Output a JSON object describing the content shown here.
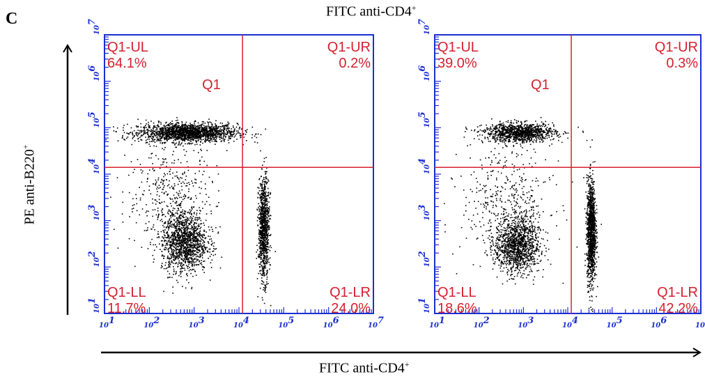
{
  "panel_label": "C",
  "top_label": {
    "text": "FITC anti-CD4",
    "sup": "+"
  },
  "x_axis_label": {
    "text": "FITC anti-CD4",
    "sup": "+"
  },
  "y_axis_label": {
    "text": "PE anti-B220",
    "sup": "+"
  },
  "colors": {
    "axis": "#1a2ed0",
    "gate": "#d4202f",
    "events": "#000000"
  },
  "chart_data": [
    {
      "type": "scatter",
      "scale": "log",
      "xlim": [
        10,
        10000000
      ],
      "ylim": [
        10,
        10000000
      ],
      "x_tick_labels": [
        "10",
        "10",
        "10",
        "10",
        "10",
        "10",
        "10"
      ],
      "x_tick_exponents": [
        "1",
        "2",
        "3",
        "4",
        "5",
        "6",
        "7"
      ],
      "y_tick_labels": [
        "10",
        "10",
        "10",
        "10",
        "10",
        "10",
        "10"
      ],
      "y_tick_exponents": [
        "1",
        "2",
        "3",
        "4",
        "5",
        "6",
        "7"
      ],
      "gate": {
        "name": "Q1",
        "x": 12000,
        "y": 14000
      },
      "quadrants": [
        {
          "name": "Q1-UL",
          "percent": "64.1%"
        },
        {
          "name": "Q1-UR",
          "percent": "0.2%"
        },
        {
          "name": "Q1-LL",
          "percent": "11.7%"
        },
        {
          "name": "Q1-LR",
          "percent": "24.0%"
        }
      ],
      "populations": [
        {
          "cx": 700,
          "cy": 80000,
          "spread_x": 0.55,
          "spread_y": 0.1,
          "n": 1800
        },
        {
          "cx": 600,
          "cy": 350,
          "spread_x": 0.25,
          "spread_y": 0.32,
          "n": 1300
        },
        {
          "cx": 35000,
          "cy": 700,
          "spread_x": 0.06,
          "spread_y": 0.55,
          "n": 1000
        },
        {
          "cx": 300,
          "cy": 3000,
          "spread_x": 0.5,
          "spread_y": 0.6,
          "n": 450
        }
      ]
    },
    {
      "type": "scatter",
      "scale": "log",
      "xlim": [
        10,
        10000000
      ],
      "ylim": [
        10,
        10000000
      ],
      "x_tick_labels": [
        "10",
        "10",
        "10",
        "10",
        "10",
        "10",
        "10"
      ],
      "x_tick_exponents": [
        "1",
        "2",
        "3",
        "4",
        "5",
        "6",
        "7"
      ],
      "y_tick_labels": [
        "10",
        "10",
        "10",
        "10",
        "10",
        "10",
        "10"
      ],
      "y_tick_exponents": [
        "1",
        "2",
        "3",
        "4",
        "5",
        "6",
        "7"
      ],
      "gate": {
        "name": "Q1",
        "x": 12000,
        "y": 14000
      },
      "quadrants": [
        {
          "name": "Q1-UL",
          "percent": "39.0%"
        },
        {
          "name": "Q1-UR",
          "percent": "0.3%"
        },
        {
          "name": "Q1-LL",
          "percent": "18.6%"
        },
        {
          "name": "Q1-LR",
          "percent": "42.2%"
        }
      ],
      "populations": [
        {
          "cx": 800,
          "cy": 80000,
          "spread_x": 0.4,
          "spread_y": 0.1,
          "n": 1100
        },
        {
          "cx": 700,
          "cy": 300,
          "spread_x": 0.25,
          "spread_y": 0.3,
          "n": 1300
        },
        {
          "cx": 33000,
          "cy": 600,
          "spread_x": 0.05,
          "spread_y": 0.55,
          "n": 1300
        },
        {
          "cx": 400,
          "cy": 3000,
          "spread_x": 0.5,
          "spread_y": 0.6,
          "n": 400
        }
      ]
    }
  ]
}
